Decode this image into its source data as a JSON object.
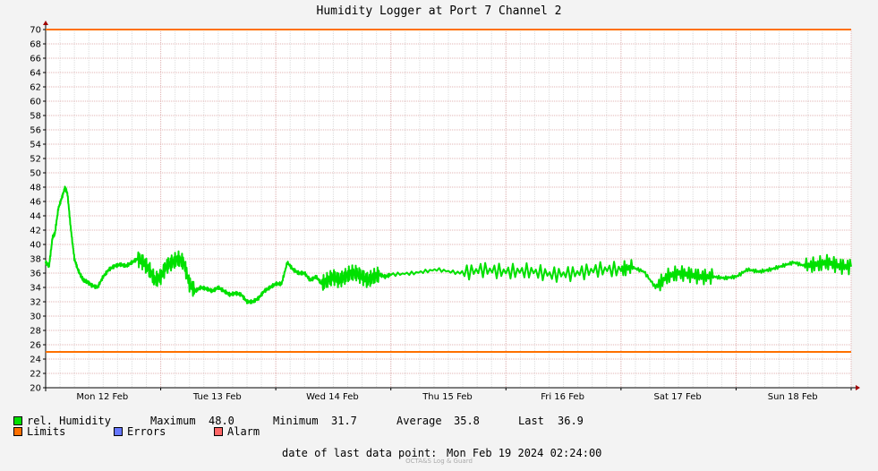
{
  "title": "Humidity Logger at Port 7 Channel 2",
  "legend": {
    "humidity": {
      "label": "rel. Humidity",
      "color": "#00e000"
    },
    "limits": {
      "label": "Limits",
      "color": "#ff7000"
    },
    "errors": {
      "label": "Errors",
      "color": "#6677ff"
    },
    "alarm": {
      "label": "Alarm",
      "color": "#ff6666"
    },
    "stats": {
      "max_label": "Maximum",
      "max_value": "48.0",
      "min_label": "Minimum",
      "min_value": "31.7",
      "avg_label": "Average",
      "avg_value": "35.8",
      "last_label": "Last",
      "last_value": "36.9"
    }
  },
  "footer": {
    "last_point_label": "date of last data point:",
    "last_point_value": "Mon Feb 19 2024 02:24:00",
    "credit": "OCTA&S Log & Guard"
  },
  "chart_data": {
    "type": "line",
    "ylim": [
      20,
      70
    ],
    "yticks": [
      20,
      22,
      24,
      26,
      28,
      30,
      32,
      34,
      36,
      38,
      40,
      42,
      44,
      46,
      48,
      50,
      52,
      54,
      56,
      58,
      60,
      62,
      64,
      66,
      68,
      70
    ],
    "xlim": [
      0,
      7
    ],
    "day_labels": [
      "Mon 12 Feb",
      "Tue 13 Feb",
      "Wed 14 Feb",
      "Thu 15 Feb",
      "Fri 16 Feb",
      "Sat 17 Feb",
      "Sun 18 Feb"
    ],
    "limits": [
      70,
      25
    ],
    "series": [
      {
        "name": "rel. Humidity",
        "x": [
          0.0,
          0.03,
          0.06,
          0.08,
          0.11,
          0.14,
          0.17,
          0.19,
          0.22,
          0.25,
          0.28,
          0.31,
          0.33,
          0.36,
          0.4,
          0.45,
          0.5,
          0.55,
          0.6,
          0.65,
          0.7,
          0.75,
          0.8,
          0.85,
          0.9,
          0.95,
          1.0,
          1.05,
          1.1,
          1.15,
          1.2,
          1.25,
          1.3,
          1.35,
          1.4,
          1.45,
          1.5,
          1.55,
          1.6,
          1.65,
          1.7,
          1.75,
          1.8,
          1.85,
          1.9,
          1.95,
          2.0,
          2.05,
          2.1,
          2.15,
          2.2,
          2.25,
          2.3,
          2.35,
          2.4,
          2.45,
          2.5,
          2.55,
          2.6,
          2.65,
          2.7,
          2.75,
          2.8,
          2.85,
          2.9,
          2.95,
          3.0,
          3.2,
          3.4,
          3.6,
          3.8,
          4.0,
          4.2,
          4.4,
          4.6,
          4.8,
          5.0,
          5.1,
          5.2,
          5.3,
          5.4,
          5.5,
          5.6,
          5.7,
          5.8,
          5.9,
          6.0,
          6.1,
          6.2,
          6.3,
          6.4,
          6.5,
          6.6,
          6.7,
          6.8,
          6.9,
          7.0
        ],
        "values": [
          37.5,
          37.0,
          41.0,
          41.5,
          45.0,
          46.5,
          48.0,
          47.0,
          42.0,
          38.0,
          36.5,
          35.5,
          35.0,
          34.8,
          34.3,
          34.0,
          35.5,
          36.5,
          37.0,
          37.2,
          37.0,
          37.5,
          38.0,
          37.5,
          36.5,
          35.0,
          35.5,
          37.0,
          37.5,
          38.0,
          37.5,
          34.5,
          33.5,
          34.0,
          33.8,
          33.5,
          34.0,
          33.5,
          33.0,
          33.2,
          33.0,
          32.0,
          32.0,
          32.5,
          33.5,
          34.0,
          34.5,
          34.5,
          37.5,
          36.5,
          36.0,
          36.0,
          35.0,
          35.5,
          34.5,
          35.0,
          35.5,
          35.0,
          35.5,
          36.0,
          36.0,
          35.5,
          35.0,
          35.5,
          35.8,
          35.5,
          35.8,
          36.0,
          36.5,
          36.0,
          36.5,
          36.2,
          36.3,
          35.8,
          36.0,
          36.5,
          36.5,
          36.8,
          36.2,
          34.0,
          35.5,
          36.0,
          35.8,
          35.5,
          35.5,
          35.3,
          35.5,
          36.5,
          36.2,
          36.5,
          37.0,
          37.5,
          37.0,
          37.2,
          37.5,
          37.0,
          36.9
        ]
      }
    ]
  }
}
